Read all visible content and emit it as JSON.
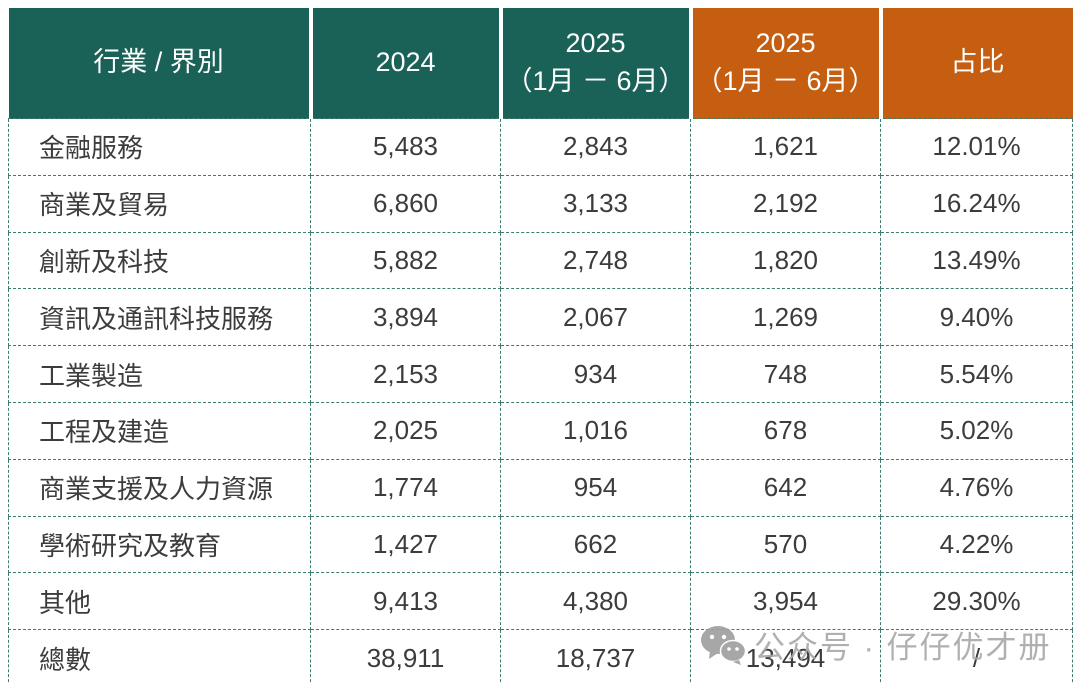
{
  "chart_data": {
    "type": "table",
    "columns": [
      {
        "lines": [
          "行業 / 界別"
        ],
        "theme": "teal"
      },
      {
        "lines": [
          "2024"
        ],
        "theme": "teal"
      },
      {
        "lines": [
          "2025",
          "（1月 － 6月）"
        ],
        "theme": "teal"
      },
      {
        "lines": [
          "2025",
          "（1月 － 6月）"
        ],
        "theme": "orange"
      },
      {
        "lines": [
          "占比"
        ],
        "theme": "orange"
      }
    ],
    "rows": [
      {
        "cells": [
          "金融服務",
          "5,483",
          "2,843",
          "1,621",
          "12.01%"
        ]
      },
      {
        "cells": [
          "商業及貿易",
          "6,860",
          "3,133",
          "2,192",
          "16.24%"
        ]
      },
      {
        "cells": [
          "創新及科技",
          "5,882",
          "2,748",
          "1,820",
          "13.49%"
        ]
      },
      {
        "cells": [
          "資訊及通訊科技服務",
          "3,894",
          "2,067",
          "1,269",
          "9.40%"
        ]
      },
      {
        "cells": [
          "工業製造",
          "2,153",
          "934",
          "748",
          "5.54%"
        ]
      },
      {
        "cells": [
          "工程及建造",
          "2,025",
          "1,016",
          "678",
          "5.02%"
        ]
      },
      {
        "cells": [
          "商業支援及人力資源",
          "1,774",
          "954",
          "642",
          "4.76%"
        ]
      },
      {
        "cells": [
          "學術研究及教育",
          "1,427",
          "662",
          "570",
          "4.22%"
        ]
      },
      {
        "cells": [
          "其他",
          "9,413",
          "4,380",
          "3,954",
          "29.30%"
        ]
      },
      {
        "cells": [
          "總數",
          "38,911",
          "18,737",
          "13,494",
          "/"
        ]
      }
    ]
  },
  "watermark": {
    "icon": "wechat-icon",
    "text": "公众号 · 仔仔优才册"
  },
  "colors": {
    "header_teal": "#1A6158",
    "header_orange": "#C55E11",
    "border_dashed": "#3D7C70",
    "body_text": "#3C3C3C",
    "header_text": "#FFFFFF",
    "watermark_gray": "#A8A8A8"
  }
}
